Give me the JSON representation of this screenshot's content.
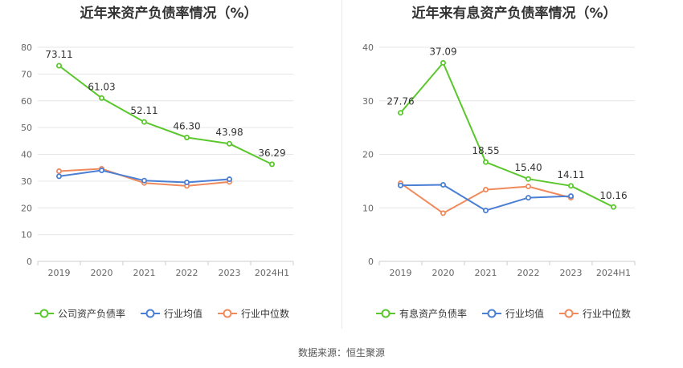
{
  "footer": {
    "source": "数据来源：恒生聚源"
  },
  "chart_data": [
    {
      "type": "line",
      "title": "近年来资产负债率情况（%）",
      "xlabel": "",
      "ylabel": "",
      "categories": [
        "2019",
        "2020",
        "2021",
        "2022",
        "2023",
        "2024H1"
      ],
      "ylim": [
        0,
        80
      ],
      "yticks": [
        0,
        10,
        20,
        30,
        40,
        50,
        60,
        70,
        80
      ],
      "grid": true,
      "legend_position": "bottom",
      "series": [
        {
          "name": "公司资产负债率",
          "color": "#5ac72c",
          "labels": true,
          "values": [
            73.11,
            61.03,
            52.11,
            46.3,
            43.98,
            36.29
          ],
          "value_labels": [
            "73.11",
            "61.03",
            "52.11",
            "46.30",
            "43.98",
            "36.29"
          ]
        },
        {
          "name": "行业均值",
          "color": "#4a7fd4",
          "labels": false,
          "values": [
            31.8,
            34.0,
            30.2,
            29.5,
            30.7,
            null
          ]
        },
        {
          "name": "行业中位数",
          "color": "#f08a5d",
          "labels": false,
          "values": [
            33.7,
            34.6,
            29.3,
            28.2,
            29.7,
            null
          ]
        }
      ]
    },
    {
      "type": "line",
      "title": "近年来有息资产负债率情况（%）",
      "xlabel": "",
      "ylabel": "",
      "categories": [
        "2019",
        "2020",
        "2021",
        "2022",
        "2023",
        "2024H1"
      ],
      "ylim": [
        0,
        40
      ],
      "yticks": [
        0,
        10,
        20,
        30,
        40
      ],
      "grid": true,
      "legend_position": "bottom",
      "series": [
        {
          "name": "有息资产负债率",
          "color": "#5ac72c",
          "labels": true,
          "values": [
            27.76,
            37.09,
            18.55,
            15.4,
            14.11,
            10.16
          ],
          "value_labels": [
            "27.76",
            "37.09",
            "18.55",
            "15.40",
            "14.11",
            "10.16"
          ]
        },
        {
          "name": "行业均值",
          "color": "#4a7fd4",
          "labels": false,
          "values": [
            14.2,
            14.3,
            9.5,
            11.9,
            12.2,
            null
          ]
        },
        {
          "name": "行业中位数",
          "color": "#f08a5d",
          "labels": false,
          "values": [
            14.6,
            9.0,
            13.4,
            14.0,
            11.9,
            null
          ]
        }
      ]
    }
  ]
}
